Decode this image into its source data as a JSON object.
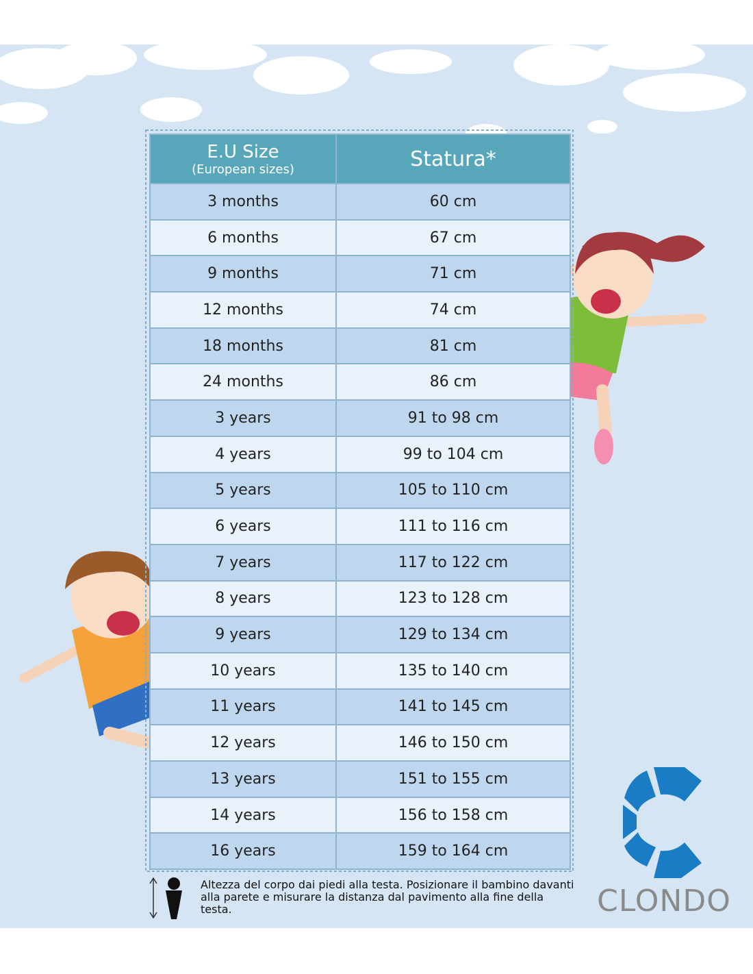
{
  "table": {
    "header": {
      "size_title": "E.U Size",
      "size_subtitle": "(European sizes)",
      "height_title": "Statura*"
    },
    "rows": [
      [
        "3 months",
        "60 cm"
      ],
      [
        "6 months",
        "67 cm"
      ],
      [
        "9 months",
        "71 cm"
      ],
      [
        "12 months",
        "74 cm"
      ],
      [
        "18 months",
        "81 cm"
      ],
      [
        "24 months",
        "86 cm"
      ],
      [
        "3 years",
        "91 to 98 cm"
      ],
      [
        "4 years",
        "99 to 104 cm"
      ],
      [
        "5 years",
        "105 to 110 cm"
      ],
      [
        "6 years",
        "111 to 116 cm"
      ],
      [
        "7 years",
        "117 to 122 cm"
      ],
      [
        "8 years",
        "123 to 128 cm"
      ],
      [
        "9 years",
        "129 to 134 cm"
      ],
      [
        "10 years",
        "135 to 140 cm"
      ],
      [
        "11 years",
        "141 to 145 cm"
      ],
      [
        "12 years",
        "146 to 150 cm"
      ],
      [
        "13 years",
        "151 to 155 cm"
      ],
      [
        "14 years",
        "156 to 158 cm"
      ],
      [
        "16 years",
        "159 to 164 cm"
      ]
    ]
  },
  "footnote": "Altezza del corpo dai piedi alla testa. Posizionare il bambino davanti alla parete e misurare la distanza dal pavimento alla fine della testa.",
  "logo": {
    "text": "CLONDO"
  }
}
